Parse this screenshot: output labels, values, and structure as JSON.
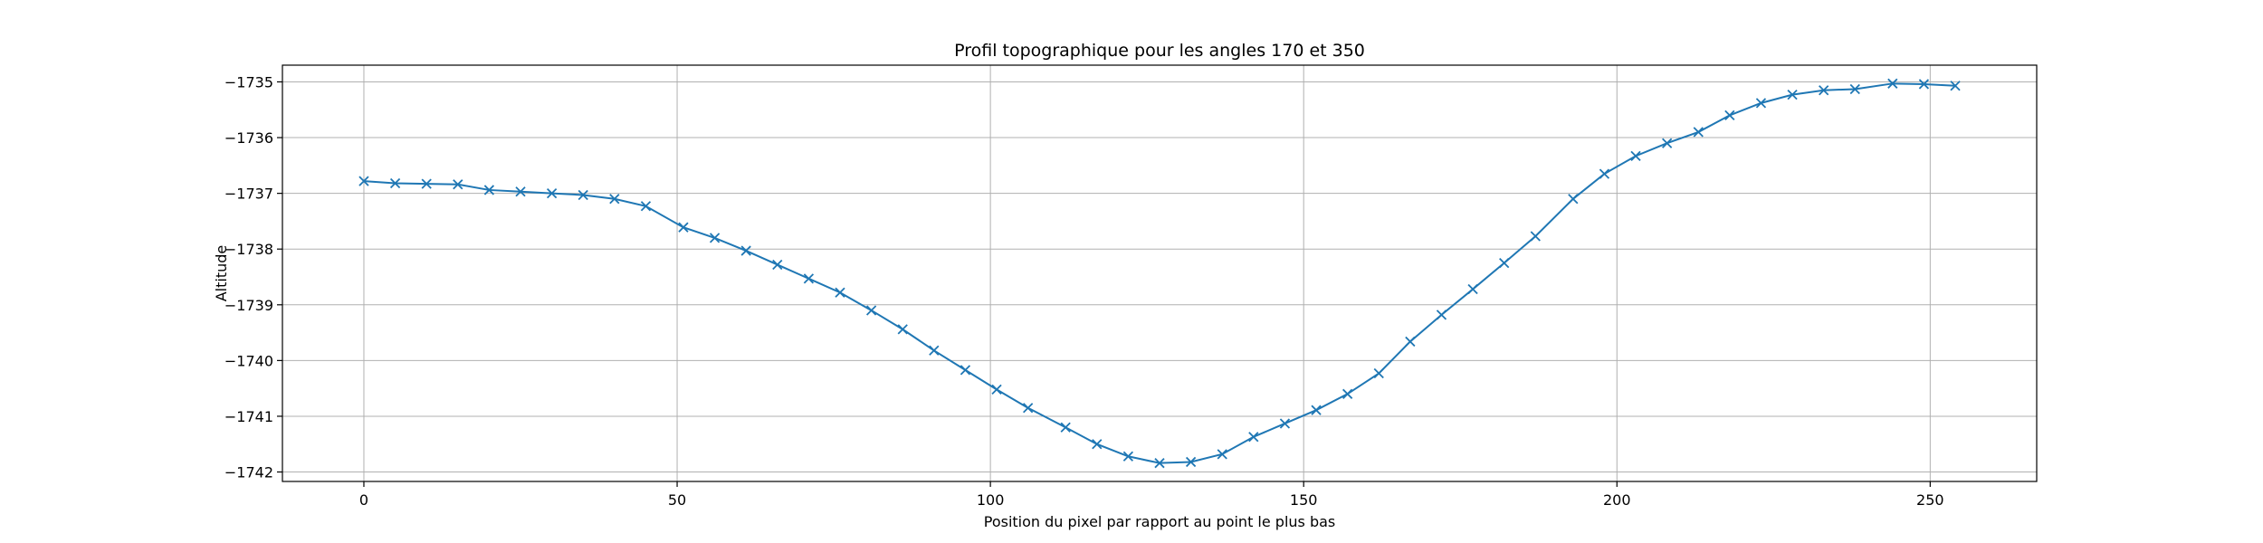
{
  "chart_data": {
    "type": "line",
    "title": "Profil topographique pour les angles 170 et 350",
    "xlabel": "Position du pixel par rapport au point le plus bas",
    "ylabel": "Altitude",
    "xlim": [
      -13,
      267
    ],
    "ylim": [
      -1742.17,
      -1734.7
    ],
    "xticks": [
      0,
      50,
      100,
      150,
      200,
      250
    ],
    "yticks": [
      -1742,
      -1741,
      -1740,
      -1739,
      -1738,
      -1737,
      -1736,
      -1735
    ],
    "xtick_labels": [
      "0",
      "50",
      "100",
      "150",
      "200",
      "250"
    ],
    "ytick_labels": [
      "−1742",
      "−1741",
      "−1740",
      "−1739",
      "−1738",
      "−1737",
      "−1736",
      "−1735"
    ],
    "grid": true,
    "marker": "x",
    "color": "#1f77b4",
    "series": [
      {
        "name": "profil",
        "x": [
          0,
          5,
          10,
          15,
          20,
          25,
          30,
          35,
          40,
          45,
          51,
          56,
          61,
          66,
          71,
          76,
          81,
          86,
          91,
          96,
          101,
          106,
          112,
          117,
          122,
          127,
          132,
          137,
          142,
          147,
          152,
          157,
          162,
          167,
          172,
          177,
          182,
          187,
          193,
          198,
          203,
          208,
          213,
          218,
          223,
          228,
          233,
          238,
          244,
          249,
          254
        ],
        "y": [
          -1736.78,
          -1736.82,
          -1736.83,
          -1736.84,
          -1736.94,
          -1736.97,
          -1737.0,
          -1737.03,
          -1737.1,
          -1737.23,
          -1737.61,
          -1737.8,
          -1738.03,
          -1738.28,
          -1738.53,
          -1738.78,
          -1739.1,
          -1739.44,
          -1739.82,
          -1740.17,
          -1740.52,
          -1740.85,
          -1741.2,
          -1741.5,
          -1741.72,
          -1741.84,
          -1741.82,
          -1741.68,
          -1741.37,
          -1741.13,
          -1740.89,
          -1740.6,
          -1740.23,
          -1739.66,
          -1739.18,
          -1738.72,
          -1738.25,
          -1737.77,
          -1737.1,
          -1736.65,
          -1736.33,
          -1736.1,
          -1735.9,
          -1735.6,
          -1735.38,
          -1735.23,
          -1735.15,
          -1735.13,
          -1735.03,
          -1735.04,
          -1735.07
        ]
      }
    ]
  }
}
